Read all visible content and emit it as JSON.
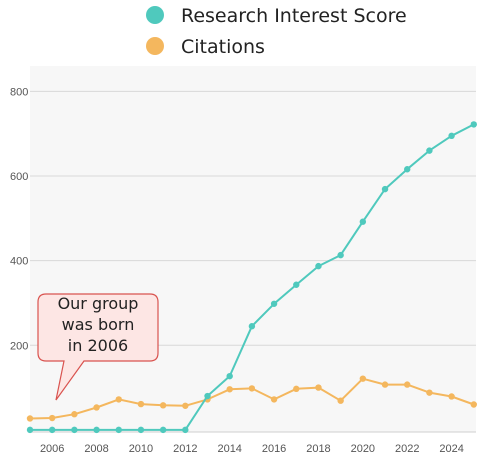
{
  "chart_data": {
    "type": "line",
    "x": [
      2005,
      2006,
      2007,
      2008,
      2009,
      2010,
      2011,
      2012,
      2013,
      2014,
      2015,
      2016,
      2017,
      2018,
      2019,
      2020,
      2021,
      2022,
      2023,
      2024,
      2025
    ],
    "series": [
      {
        "name": "Research Interest Score",
        "color": "#4fc9bd",
        "values": [
          0,
          0,
          0,
          0,
          0,
          0,
          0,
          0,
          80,
          127,
          245,
          298,
          343,
          387,
          413,
          492,
          569,
          616,
          660,
          695,
          722
        ]
      },
      {
        "name": "Citations",
        "color": "#f4b75e",
        "values": [
          27,
          28,
          37,
          53,
          72,
          61,
          58,
          57,
          72,
          96,
          98,
          72,
          97,
          100,
          69,
          121,
          107,
          107,
          88,
          79,
          60
        ]
      }
    ],
    "yticks": [
      200,
      400,
      600,
      800
    ],
    "xticks": [
      2006,
      2008,
      2010,
      2012,
      2014,
      2016,
      2018,
      2020,
      2022,
      2024
    ],
    "ylim": [
      -5,
      860
    ],
    "xlim": [
      2005,
      2025.1
    ],
    "grid": true,
    "legend_position": "top",
    "annotation": {
      "lines": [
        "Our group",
        "was born",
        "in 2006"
      ],
      "fill": "#fde6e4",
      "stroke": "#d9534f"
    }
  }
}
